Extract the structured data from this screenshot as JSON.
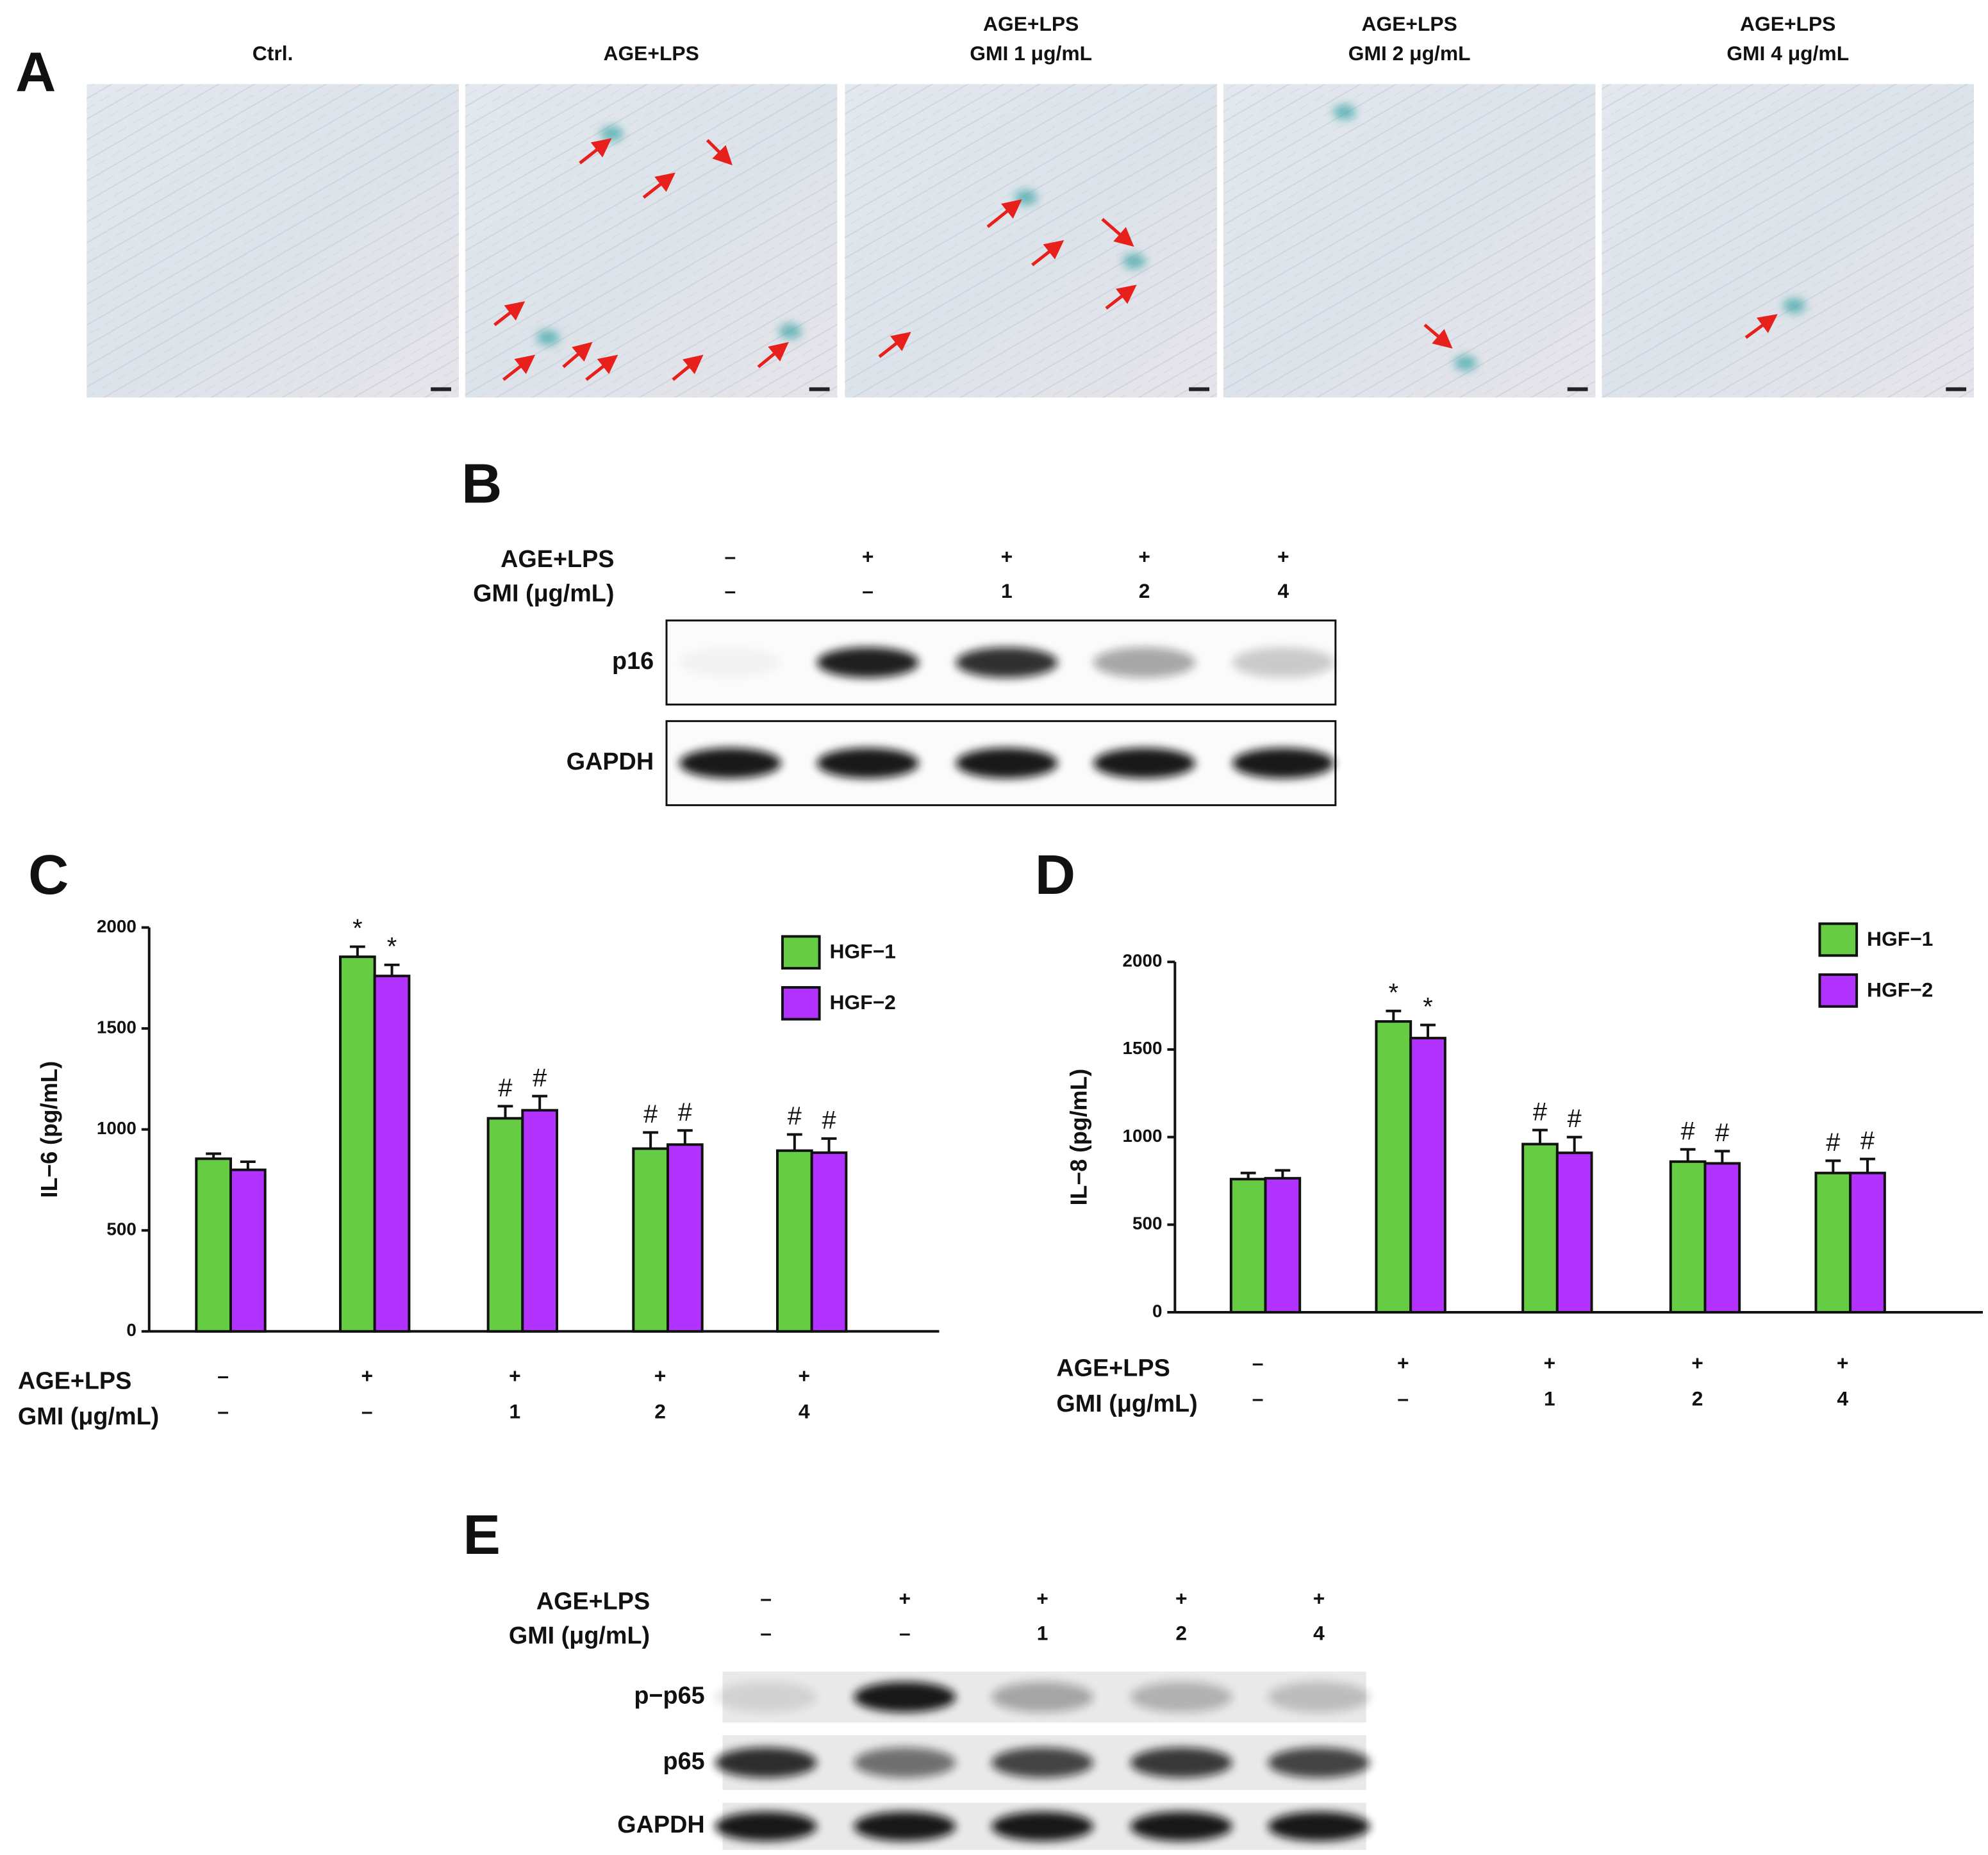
{
  "panel_labels": [
    "A",
    "B",
    "C",
    "D",
    "E"
  ],
  "photos": {
    "titles": [
      [
        "Ctrl."
      ],
      [
        "AGE+LPS"
      ],
      [
        "AGE+LPS",
        "GMI 1 μg/mL"
      ],
      [
        "AGE+LPS",
        "GMI 2 μg/mL"
      ],
      [
        "AGE+LPS",
        "GMI 4 μg/mL"
      ]
    ]
  },
  "blot_B": {
    "conditions": [
      {
        "label": "AGE+LPS",
        "values": [
          "–",
          "+",
          "+",
          "+",
          "+"
        ]
      },
      {
        "label": "GMI (μg/mL)",
        "values": [
          "–",
          "–",
          "1",
          "2",
          "4"
        ]
      }
    ],
    "rows": [
      "p16",
      "GAPDH"
    ]
  },
  "blot_E": {
    "conditions": [
      {
        "label": "AGE+LPS",
        "values": [
          "–",
          "+",
          "+",
          "+",
          "+"
        ]
      },
      {
        "label": "GMI (μg/mL)",
        "values": [
          "–",
          "–",
          "1",
          "2",
          "4"
        ]
      }
    ],
    "rows": [
      "p−p65",
      "p65",
      "GAPDH"
    ]
  },
  "chart_data": [
    {
      "type": "bar",
      "y_label": "IL−6 (pg/mL)",
      "conditions": [
        {
          "label": "AGE+LPS",
          "values": [
            "–",
            "+",
            "+",
            "+",
            "+"
          ]
        },
        {
          "label": "GMI (μg/mL)",
          "values": [
            "–",
            "–",
            "1",
            "2",
            "4"
          ]
        }
      ],
      "series": [
        {
          "name": "HGF−1",
          "color": "#66cc44",
          "values": [
            855,
            1855,
            1055,
            905,
            895
          ],
          "errors": [
            25,
            50,
            60,
            80,
            80
          ],
          "markers": [
            null,
            "*",
            "#",
            "#",
            "#"
          ]
        },
        {
          "name": "HGF−2",
          "color": "#b233ff",
          "values": [
            800,
            1760,
            1095,
            925,
            885
          ],
          "errors": [
            40,
            55,
            70,
            70,
            70
          ],
          "markers": [
            null,
            "*",
            "#",
            "#",
            "#"
          ]
        }
      ],
      "ylim": [
        0,
        2000
      ],
      "yticks": [
        0,
        500,
        1000,
        1500,
        2000
      ],
      "legend": "upper right"
    },
    {
      "type": "bar",
      "y_label": "IL−8 (pg/mL)",
      "conditions": [
        {
          "label": "AGE+LPS",
          "values": [
            "–",
            "+",
            "+",
            "+",
            "+"
          ]
        },
        {
          "label": "GMI (μg/mL)",
          "values": [
            "–",
            "–",
            "1",
            "2",
            "4"
          ]
        }
      ],
      "series": [
        {
          "name": "HGF−1",
          "color": "#66cc44",
          "values": [
            760,
            1660,
            960,
            860,
            795
          ],
          "errors": [
            35,
            60,
            80,
            70,
            70
          ],
          "markers": [
            null,
            "*",
            "#",
            "#",
            "#"
          ]
        },
        {
          "name": "HGF−2",
          "color": "#b233ff",
          "values": [
            765,
            1565,
            910,
            850,
            795
          ],
          "errors": [
            45,
            75,
            90,
            70,
            80
          ],
          "markers": [
            null,
            "*",
            "#",
            "#",
            "#"
          ]
        }
      ],
      "ylim": [
        0,
        2000
      ],
      "yticks": [
        0,
        500,
        1000,
        1500,
        2000
      ],
      "legend": "upper right"
    }
  ]
}
